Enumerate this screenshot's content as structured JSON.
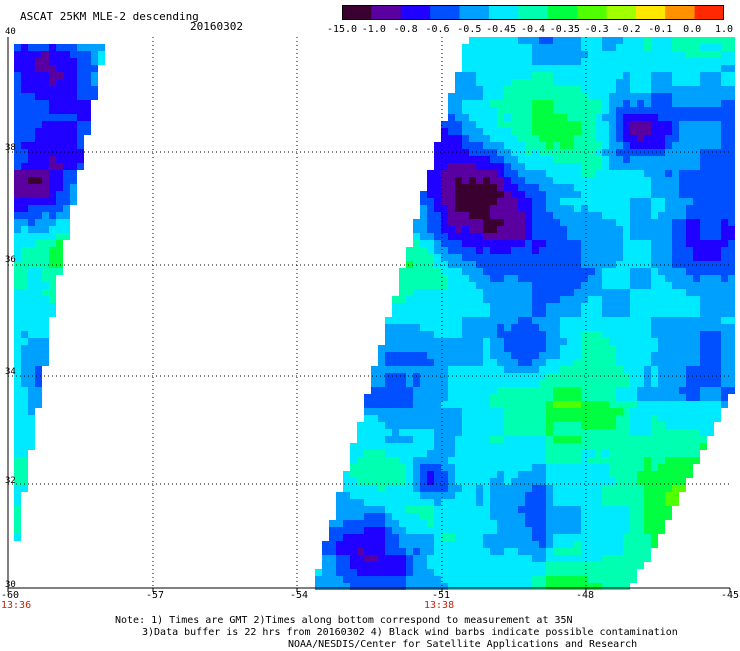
{
  "header": {
    "title": "ASCAT 25KM MLE-2 descending",
    "date": "20160302"
  },
  "colorbar": {
    "labels": [
      "-15.0",
      "-1.0",
      "-0.8",
      "-0.6",
      "-0.5",
      "-0.45",
      "-0.4",
      "-0.35",
      "-0.3",
      "-0.2",
      "-0.1",
      "0.0",
      "1.0"
    ],
    "colors": [
      "#3a0030",
      "#5a00a0",
      "#2000ff",
      "#0050ff",
      "#00a0ff",
      "#00eaff",
      "#00ffb0",
      "#00ff40",
      "#50ff00",
      "#a0ff00",
      "#ffe800",
      "#ff9000",
      "#ff2800"
    ]
  },
  "map": {
    "lat_labels": [
      "40",
      "38",
      "36",
      "34",
      "32",
      "30"
    ],
    "lon_labels": [
      "-60",
      "-57",
      "-54",
      "-51",
      "-48",
      "-45"
    ],
    "time_labels": [
      {
        "lon": "-60",
        "text": "13:36"
      },
      {
        "lon": "-51",
        "text": "13:38"
      }
    ]
  },
  "note": {
    "line1": "Note: 1) Times are GMT 2)Times along bottom correspond to measurement at 35N",
    "line2": "3)Data buffer is 22 hrs from 20160302 4) Black wind barbs indicate possible contamination",
    "line3": "NOAA/NESDIS/Center for Satellite Applications and Research"
  }
}
